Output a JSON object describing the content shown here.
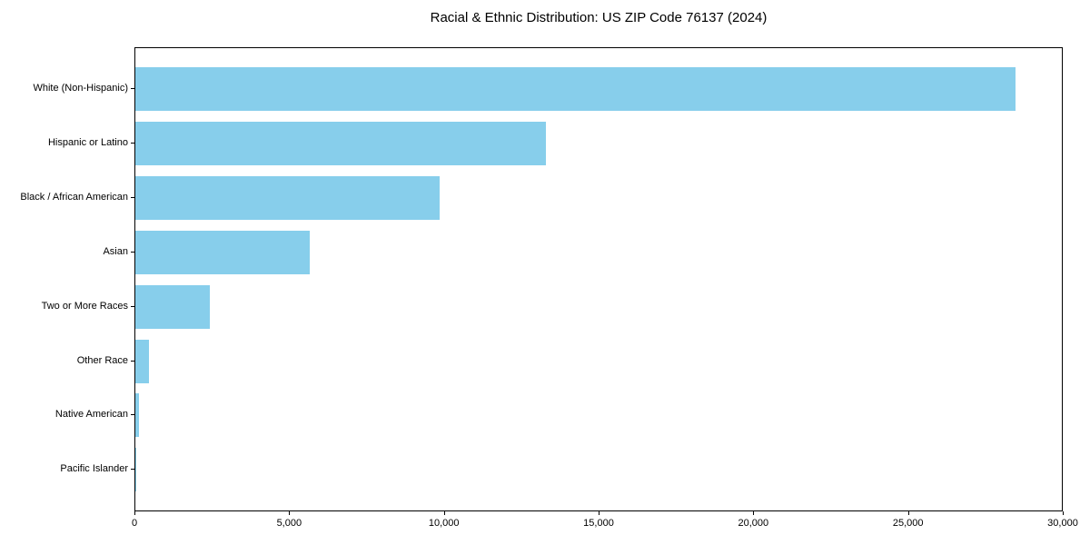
{
  "chart_data": {
    "type": "bar",
    "orientation": "horizontal",
    "title": "Racial & Ethnic Distribution: US ZIP Code 76137 (2024)",
    "categories": [
      "White (Non-Hispanic)",
      "Hispanic or Latino",
      "Black / African American",
      "Asian",
      "Two or More Races",
      "Other Race",
      "Native American",
      "Pacific Islander"
    ],
    "values": [
      28500,
      13300,
      9850,
      5650,
      2400,
      430,
      125,
      20
    ],
    "xlabel": "",
    "ylabel": "",
    "xlim": [
      0,
      30000
    ],
    "x_ticks": [
      0,
      5000,
      10000,
      15000,
      20000,
      25000,
      30000
    ],
    "x_tick_labels": [
      "0",
      "5,000",
      "10,000",
      "15,000",
      "20,000",
      "25,000",
      "30,000"
    ],
    "bar_color": "#87CEEB",
    "text_color": "#000000",
    "grid": false,
    "legend": null
  }
}
